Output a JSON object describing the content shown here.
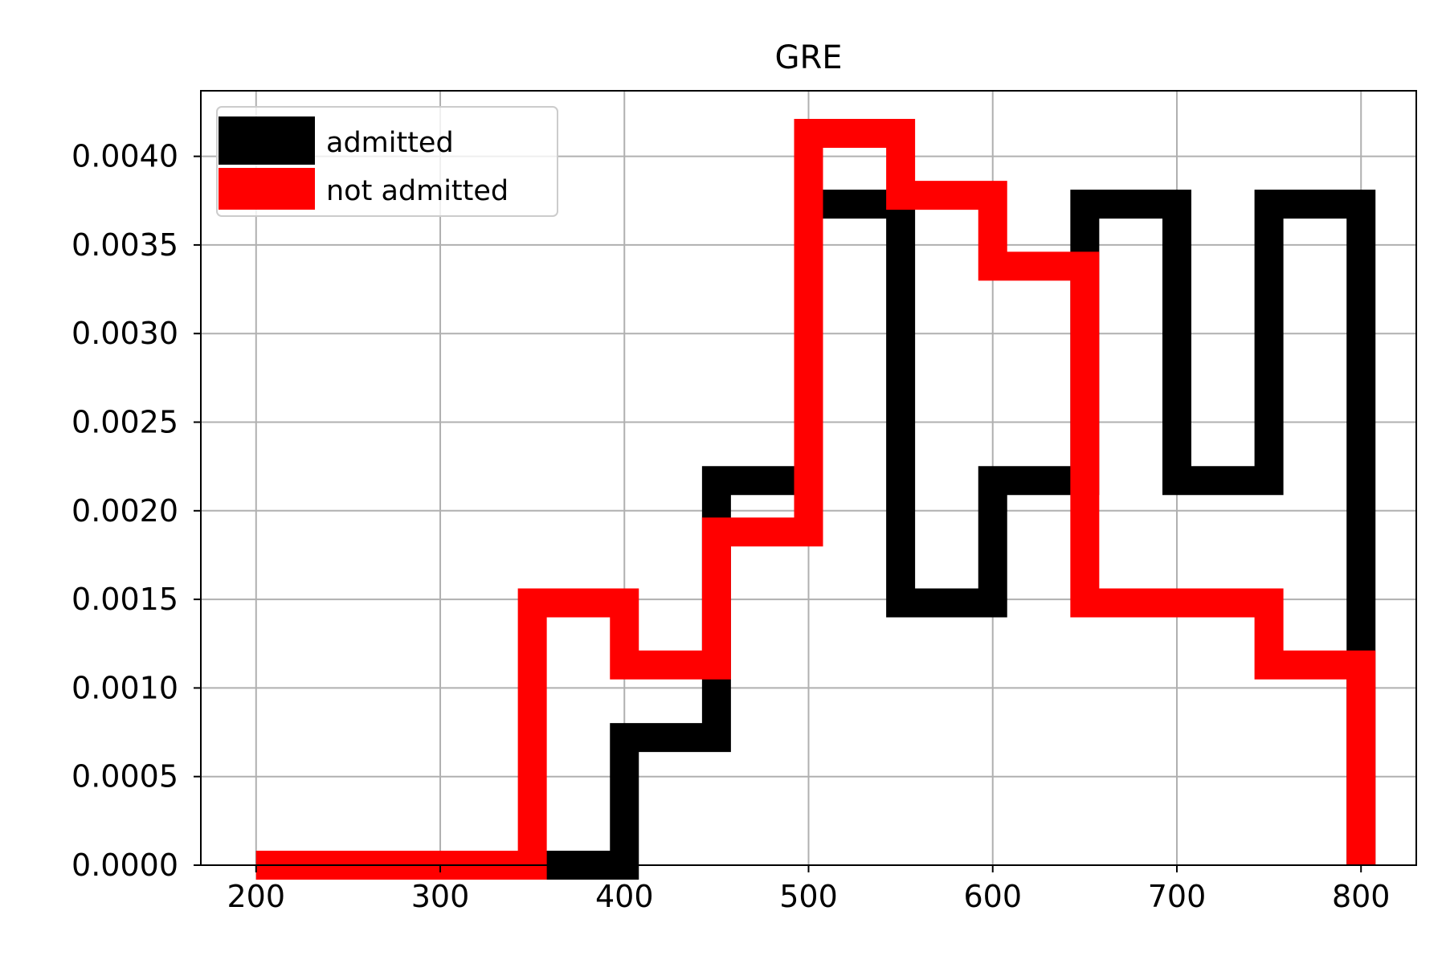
{
  "chart_data": {
    "type": "step-histogram",
    "title": "GRE",
    "xlabel": "",
    "ylabel": "",
    "xlim": [
      170,
      830
    ],
    "ylim": [
      0,
      0.00437
    ],
    "grid": true,
    "legend_placement": "top-left",
    "bin_edges": [
      200,
      250,
      300,
      350,
      400,
      450,
      500,
      550,
      600,
      650,
      700,
      750,
      800
    ],
    "xticks": [
      200,
      300,
      400,
      500,
      600,
      700,
      800
    ],
    "xtick_labels": [
      "200",
      "300",
      "400",
      "500",
      "600",
      "700",
      "800"
    ],
    "yticks": [
      0,
      0.0005,
      0.001,
      0.0015,
      0.002,
      0.0025,
      0.003,
      0.0035,
      0.004
    ],
    "ytick_labels": [
      "0.0000",
      "0.0005",
      "0.0010",
      "0.0015",
      "0.0020",
      "0.0025",
      "0.0030",
      "0.0035",
      "0.0040"
    ],
    "series": [
      {
        "name": "admitted",
        "color": "#000000",
        "values": [
          0.0,
          0.0,
          0.0,
          0.0,
          0.00072,
          0.00217,
          0.00373,
          0.00148,
          0.00217,
          0.00373,
          0.00217,
          0.00373
        ]
      },
      {
        "name": "not admitted",
        "color": "#ff0000",
        "values": [
          0.0,
          0.0,
          0.0,
          0.00148,
          0.00113,
          0.00188,
          0.00413,
          0.00378,
          0.00338,
          0.00148,
          0.00148,
          0.00113
        ]
      }
    ]
  }
}
